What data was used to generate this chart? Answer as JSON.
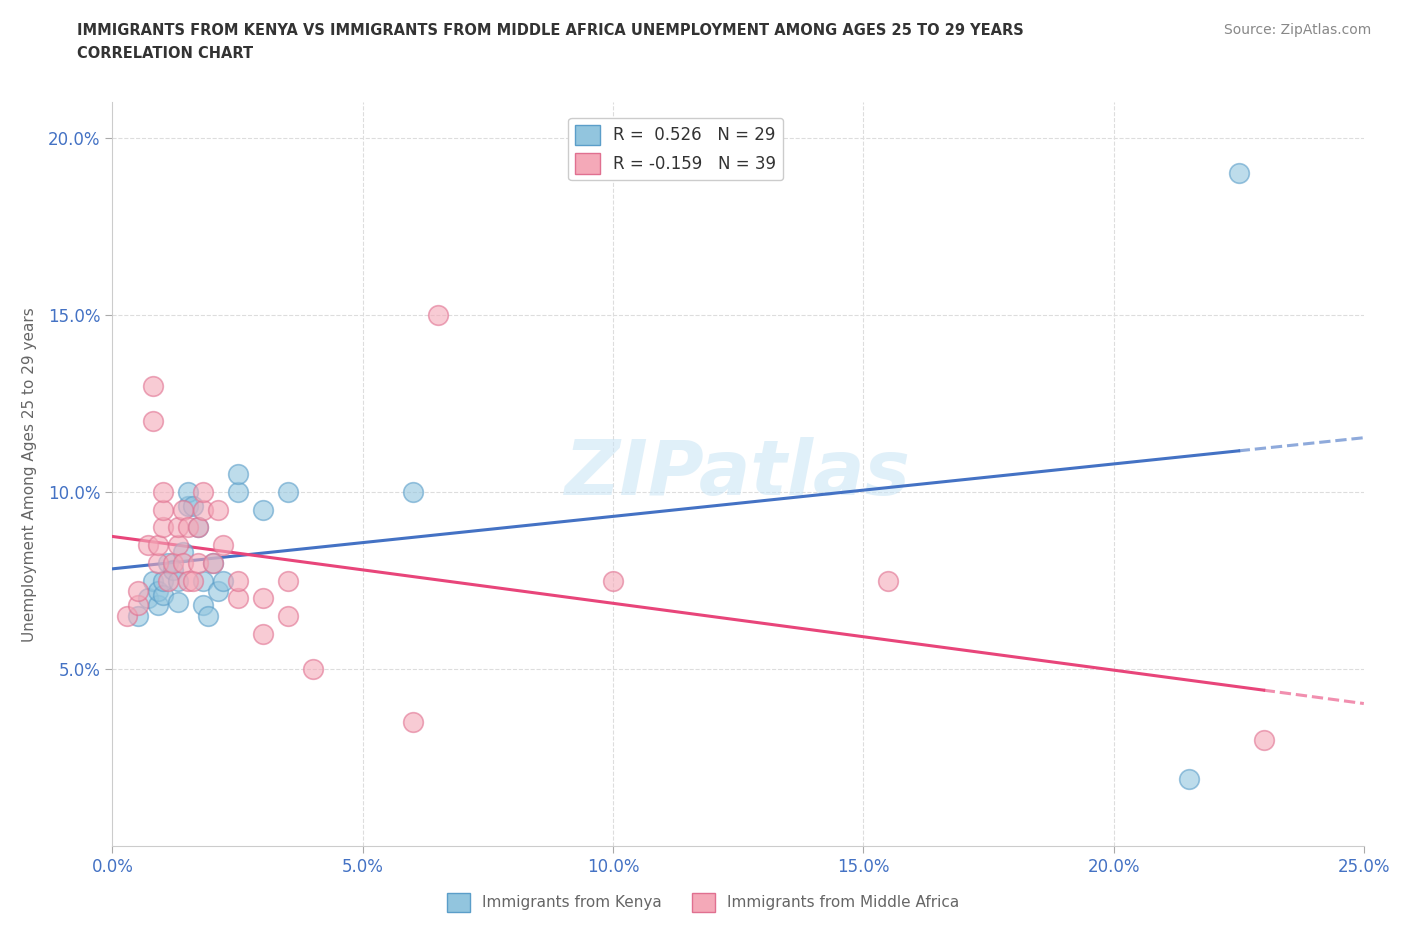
{
  "title_line1": "IMMIGRANTS FROM KENYA VS IMMIGRANTS FROM MIDDLE AFRICA UNEMPLOYMENT AMONG AGES 25 TO 29 YEARS",
  "title_line2": "CORRELATION CHART",
  "source_text": "Source: ZipAtlas.com",
  "ylabel": "Unemployment Among Ages 25 to 29 years",
  "xlim": [
    0.0,
    0.25
  ],
  "ylim": [
    0.0,
    0.21
  ],
  "ytick_labels": [
    "5.0%",
    "10.0%",
    "15.0%",
    "20.0%"
  ],
  "ytick_vals": [
    0.05,
    0.1,
    0.15,
    0.2
  ],
  "xtick_labels": [
    "0.0%",
    "5.0%",
    "10.0%",
    "15.0%",
    "20.0%",
    "25.0%"
  ],
  "xtick_vals": [
    0.0,
    0.05,
    0.1,
    0.15,
    0.2,
    0.25
  ],
  "kenya_color": "#92c5de",
  "kenya_edge": "#5b9ec9",
  "middle_africa_color": "#f4a9b8",
  "middle_africa_edge": "#e07090",
  "kenya_R": 0.526,
  "kenya_N": 29,
  "middle_africa_R": -0.159,
  "middle_africa_N": 39,
  "kenya_trend_color": "#4472c4",
  "middle_africa_trend_color": "#e8457a",
  "watermark": "ZIPatlas",
  "kenya_scatter_x": [
    0.005,
    0.007,
    0.008,
    0.009,
    0.009,
    0.01,
    0.01,
    0.011,
    0.012,
    0.013,
    0.013,
    0.014,
    0.015,
    0.015,
    0.016,
    0.017,
    0.018,
    0.018,
    0.019,
    0.02,
    0.021,
    0.022,
    0.025,
    0.025,
    0.03,
    0.035,
    0.06,
    0.215,
    0.225
  ],
  "kenya_scatter_y": [
    0.065,
    0.07,
    0.075,
    0.068,
    0.072,
    0.071,
    0.075,
    0.08,
    0.078,
    0.069,
    0.075,
    0.083,
    0.096,
    0.1,
    0.096,
    0.09,
    0.075,
    0.068,
    0.065,
    0.08,
    0.072,
    0.075,
    0.1,
    0.105,
    0.095,
    0.1,
    0.1,
    0.019,
    0.19
  ],
  "middle_africa_scatter_x": [
    0.003,
    0.005,
    0.005,
    0.007,
    0.008,
    0.008,
    0.009,
    0.009,
    0.01,
    0.01,
    0.01,
    0.011,
    0.012,
    0.013,
    0.013,
    0.014,
    0.014,
    0.015,
    0.015,
    0.016,
    0.017,
    0.017,
    0.018,
    0.018,
    0.02,
    0.021,
    0.022,
    0.025,
    0.025,
    0.03,
    0.03,
    0.035,
    0.035,
    0.04,
    0.06,
    0.065,
    0.1,
    0.155,
    0.23
  ],
  "middle_africa_scatter_y": [
    0.065,
    0.068,
    0.072,
    0.085,
    0.12,
    0.13,
    0.08,
    0.085,
    0.09,
    0.095,
    0.1,
    0.075,
    0.08,
    0.085,
    0.09,
    0.08,
    0.095,
    0.075,
    0.09,
    0.075,
    0.08,
    0.09,
    0.095,
    0.1,
    0.08,
    0.095,
    0.085,
    0.07,
    0.075,
    0.06,
    0.07,
    0.065,
    0.075,
    0.05,
    0.035,
    0.15,
    0.075,
    0.075,
    0.03
  ]
}
